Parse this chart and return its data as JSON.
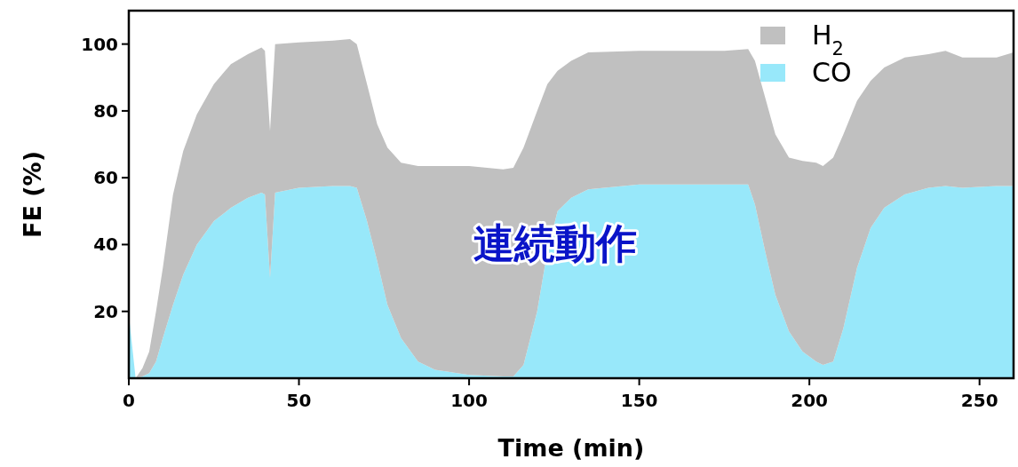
{
  "chart_data": {
    "type": "area",
    "stacked": true,
    "xlabel": "Time (min)",
    "ylabel": "FE (%)",
    "x": [
      0,
      2,
      4,
      6,
      8,
      10,
      13,
      16,
      20,
      25,
      30,
      35,
      39,
      40,
      41.5,
      43,
      50,
      60,
      65,
      67,
      70,
      73,
      76,
      80,
      85,
      90,
      100,
      110,
      113,
      116,
      120,
      123,
      126,
      130,
      135,
      150,
      175,
      182,
      184,
      187,
      190,
      194,
      198,
      202,
      204,
      207,
      210,
      214,
      218,
      222,
      228,
      235,
      240,
      245,
      255,
      260
    ],
    "series": [
      {
        "name": "CO",
        "color": "#98e8fa",
        "values": [
          19,
          0,
          0.5,
          1.5,
          5,
          12,
          22,
          31,
          40,
          47,
          51,
          54,
          55.5,
          55,
          30,
          55.5,
          57,
          57.5,
          57.5,
          57,
          47,
          35,
          22,
          12,
          5,
          2.5,
          1,
          0.5,
          0.5,
          4,
          20,
          38,
          50,
          54,
          56.5,
          58,
          58,
          58,
          52,
          38,
          25,
          14,
          8,
          5,
          4,
          5,
          15,
          33,
          45,
          51,
          55,
          57,
          57.5,
          57,
          57.5,
          57.5
        ]
      },
      {
        "name": "H$_{2}$",
        "color": "#c0c0c0",
        "values": [
          0,
          0,
          2.5,
          6.5,
          15,
          21,
          33,
          37,
          39,
          41,
          43,
          43,
          43.5,
          43,
          44,
          44.5,
          43.5,
          43.5,
          44,
          43,
          41,
          41,
          47,
          52.5,
          58.5,
          61,
          62.5,
          62,
          62.5,
          65,
          60,
          50,
          42,
          41,
          41,
          40,
          40,
          40.5,
          43,
          46,
          48,
          52,
          57,
          59.5,
          59.5,
          61,
          58,
          50,
          44,
          42,
          41,
          40,
          40.5,
          39,
          38.5,
          40
        ]
      }
    ],
    "xlim": [
      0,
      260
    ],
    "ylim": [
      0,
      110
    ],
    "xticks": [
      0,
      50,
      100,
      150,
      200,
      250
    ],
    "yticks": [
      20,
      40,
      60,
      80,
      100
    ],
    "legend": "top right",
    "grid": false,
    "annotations": [
      "連続動作"
    ]
  }
}
